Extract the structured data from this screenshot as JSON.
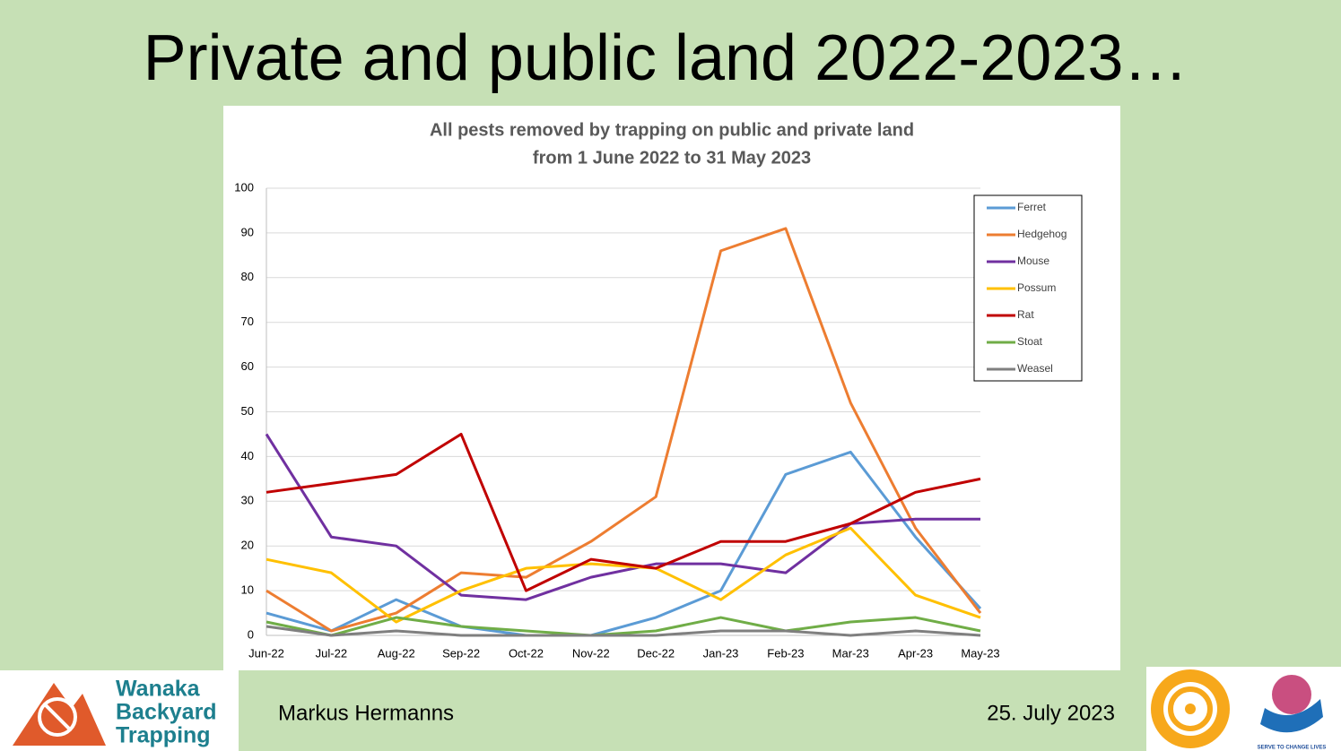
{
  "slide_title": "Private and public land 2022-2023…",
  "chart_data": {
    "type": "line",
    "title": [
      "All pests removed by trapping on public and private land",
      "from 1 June 2022 to 31 May 2023"
    ],
    "categories": [
      "Jun-22",
      "Jul-22",
      "Aug-22",
      "Sep-22",
      "Oct-22",
      "Nov-22",
      "Dec-22",
      "Jan-23",
      "Feb-23",
      "Mar-23",
      "Apr-23",
      "May-23"
    ],
    "series": [
      {
        "name": "Ferret",
        "color": "#5b9bd5",
        "values": [
          5,
          1,
          8,
          2,
          0,
          0,
          4,
          10,
          36,
          41,
          22,
          6
        ]
      },
      {
        "name": "Hedgehog",
        "color": "#ed7d31",
        "values": [
          10,
          1,
          5,
          14,
          13,
          21,
          31,
          86,
          91,
          52,
          24,
          5
        ]
      },
      {
        "name": "Mouse",
        "color": "#7030a0",
        "values": [
          45,
          22,
          20,
          9,
          8,
          13,
          16,
          16,
          14,
          25,
          26,
          26
        ]
      },
      {
        "name": "Possum",
        "color": "#ffc000",
        "values": [
          17,
          14,
          3,
          10,
          15,
          16,
          15,
          8,
          18,
          24,
          9,
          4
        ]
      },
      {
        "name": "Rat",
        "color": "#c00000",
        "values": [
          32,
          34,
          36,
          45,
          10,
          17,
          15,
          21,
          21,
          25,
          32,
          35
        ]
      },
      {
        "name": "Stoat",
        "color": "#70ad47",
        "values": [
          3,
          0,
          4,
          2,
          1,
          0,
          1,
          4,
          1,
          3,
          4,
          1
        ]
      },
      {
        "name": "Weasel",
        "color": "#7f7f7f",
        "values": [
          2,
          0,
          1,
          0,
          0,
          0,
          0,
          1,
          1,
          0,
          1,
          0
        ]
      }
    ],
    "ylim": [
      0,
      100
    ],
    "yticks": [
      0,
      10,
      20,
      30,
      40,
      50,
      60,
      70,
      80,
      90,
      100
    ],
    "grid": true,
    "legend": "top-right"
  },
  "footer": {
    "author": "Markus Hermanns",
    "date": "25. July 2023"
  },
  "logos": {
    "wanaka": [
      "Wanaka",
      "Backyard",
      "Trapping"
    ],
    "rotary_motto": "SERVE TO CHANGE LIVES"
  }
}
